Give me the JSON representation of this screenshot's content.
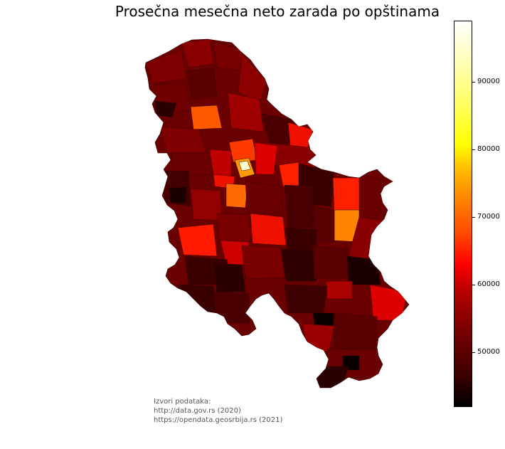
{
  "map": {
    "title": "Prosečna mesečna neto zarada po opštinama",
    "colormap": "hot",
    "region_shown": "Serbia (municipalities)",
    "colorbar": {
      "min": 42000,
      "max": 99000,
      "ticks": [
        {
          "value": 50000,
          "label": "50000"
        },
        {
          "value": 60000,
          "label": "60000"
        },
        {
          "value": 70000,
          "label": "70000"
        },
        {
          "value": 80000,
          "label": "80000"
        },
        {
          "value": 90000,
          "label": "90000"
        }
      ]
    },
    "sources": {
      "heading": "Izvori podataka:",
      "lines": [
        "http://data.gov.rs (2020)",
        "https://opendata.geosrbija.rs (2021)"
      ]
    },
    "colors": {
      "low": "#000000",
      "mid_dark": "#7a0000",
      "red": "#ff0000",
      "orange": "#ff8c00",
      "yellow": "#ffff00",
      "high": "#ffffff"
    }
  }
}
